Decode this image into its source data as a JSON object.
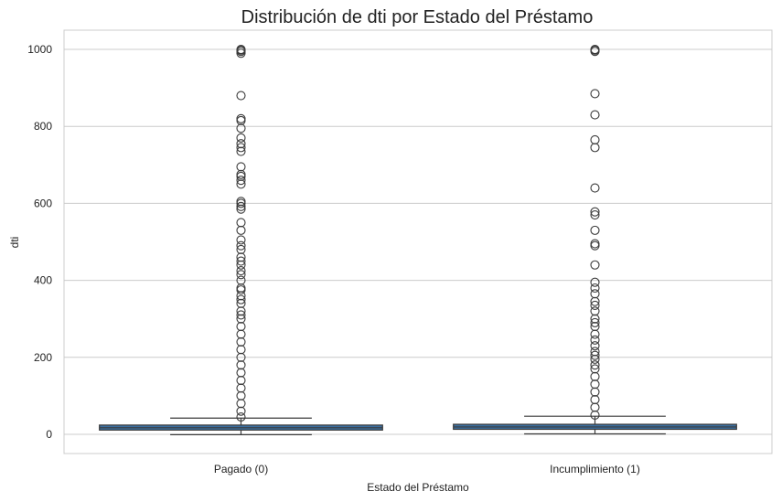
{
  "chart_data": {
    "type": "box",
    "title": "Distribución de dti por Estado del Préstamo",
    "xlabel": "Estado del Préstamo",
    "ylabel": "dti",
    "categories": [
      "Pagado (0)",
      "Incumplimiento (1)"
    ],
    "ylim": [
      -50,
      1050
    ],
    "yticks": [
      0,
      200,
      400,
      600,
      800,
      1000
    ],
    "grid": true,
    "box_color": "#3b6fa0",
    "series": [
      {
        "category": "Pagado (0)",
        "whisker_low": -1,
        "q1": 11,
        "median": 17,
        "q3": 24,
        "whisker_high": 42,
        "outliers": [
          45,
          60,
          80,
          100,
          120,
          140,
          160,
          180,
          200,
          220,
          240,
          260,
          280,
          300,
          310,
          320,
          340,
          350,
          360,
          375,
          380,
          400,
          415,
          425,
          440,
          450,
          460,
          480,
          490,
          505,
          530,
          550,
          585,
          592,
          600,
          605,
          650,
          660,
          670,
          675,
          695,
          735,
          745,
          755,
          770,
          795,
          815,
          820,
          880,
          990,
          995,
          998,
          1000
        ]
      },
      {
        "category": "Incumplimiento (1)",
        "whisker_low": 1,
        "q1": 13,
        "median": 19,
        "q3": 26,
        "whisker_high": 47,
        "outliers": [
          50,
          70,
          90,
          110,
          130,
          150,
          170,
          180,
          195,
          205,
          215,
          230,
          245,
          260,
          280,
          290,
          300,
          320,
          335,
          345,
          365,
          380,
          395,
          440,
          490,
          495,
          530,
          570,
          578,
          640,
          745,
          765,
          830,
          885,
          995,
          998,
          1000
        ]
      }
    ]
  }
}
